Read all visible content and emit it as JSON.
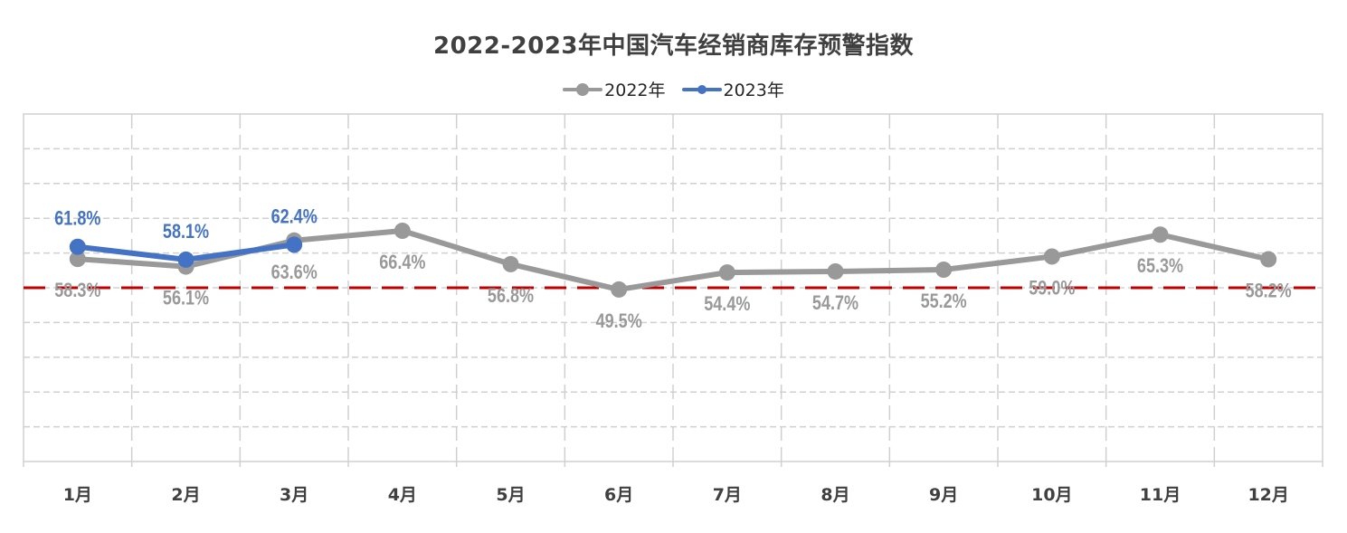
{
  "chart_data": {
    "type": "line",
    "title": "2022-2023年中国汽车经销商库存预警指数",
    "xlabel": "",
    "ylabel": "",
    "categories": [
      "1月",
      "2月",
      "3月",
      "4月",
      "5月",
      "6月",
      "7月",
      "8月",
      "9月",
      "10月",
      "11月",
      "12月"
    ],
    "ylim": [
      0,
      100
    ],
    "y_grid_step": 10,
    "grid": true,
    "legend_position": "top",
    "reference_line": {
      "value": 50,
      "color": "#C00000",
      "style": "dashed"
    },
    "series": [
      {
        "name": "2022年",
        "color": "#999999",
        "marker": "circle-large",
        "values": [
          58.3,
          56.1,
          63.6,
          66.4,
          56.8,
          49.5,
          54.4,
          54.7,
          55.2,
          59.0,
          65.3,
          58.2
        ],
        "labels": [
          "58.3%",
          "56.1%",
          "63.6%",
          "66.4%",
          "56.8%",
          "49.5%",
          "54.4%",
          "54.7%",
          "55.2%",
          "59.0%",
          "65.3%",
          "58.2%"
        ],
        "label_position": "below"
      },
      {
        "name": "2023年",
        "color": "#4472C4",
        "marker": "circle-large",
        "values": [
          61.8,
          58.1,
          62.4
        ],
        "labels": [
          "61.8%",
          "58.1%",
          "62.4%"
        ],
        "label_position": "above"
      }
    ]
  },
  "colors": {
    "title": "#404040",
    "axis_label": "#404040",
    "grid": "#D0D0D0",
    "border": "#D0D0D0"
  }
}
